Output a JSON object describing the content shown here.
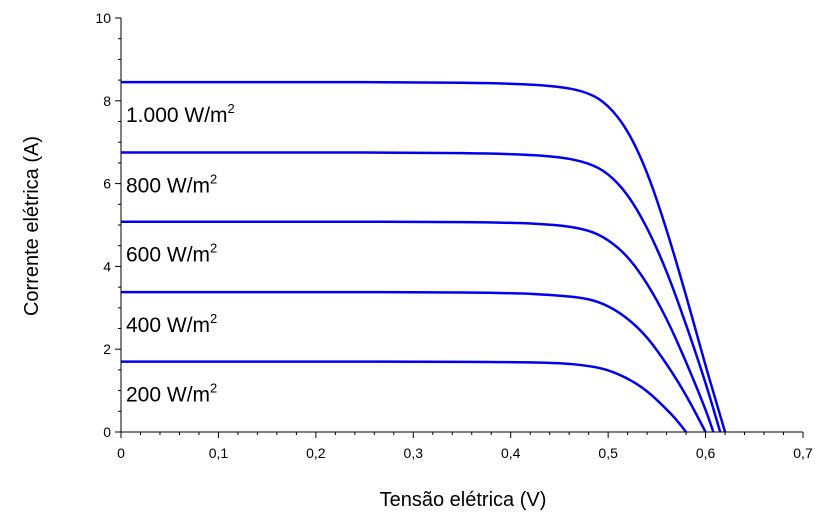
{
  "chart_data": {
    "type": "line",
    "xlabel": "Tensão elétrica (V)",
    "ylabel": "Corrente elétrica (A)",
    "xlim": [
      0,
      0.7
    ],
    "ylim": [
      0,
      10
    ],
    "grid": false,
    "x_ticks": [
      "0",
      "0,1",
      "0,2",
      "0,3",
      "0,4",
      "0,5",
      "0,6",
      "0,7"
    ],
    "y_ticks": [
      "0",
      "2",
      "4",
      "6",
      "8",
      "10"
    ],
    "series_color": "#0000ee",
    "series": [
      {
        "name": "1.000 W/m2",
        "label_text": "1.000 W/m",
        "label_sup": "2",
        "x": [
          0,
          0.1,
          0.2,
          0.3,
          0.4,
          0.45,
          0.48,
          0.5,
          0.52,
          0.54,
          0.56,
          0.58,
          0.6,
          0.61,
          0.62
        ],
        "y": [
          8.45,
          8.45,
          8.45,
          8.45,
          8.42,
          8.35,
          8.2,
          7.9,
          7.3,
          6.3,
          4.9,
          3.3,
          1.6,
          0.8,
          0
        ]
      },
      {
        "name": "800 W/m2",
        "label_text": "800 W/m",
        "label_sup": "2",
        "x": [
          0,
          0.1,
          0.2,
          0.3,
          0.4,
          0.45,
          0.48,
          0.5,
          0.52,
          0.54,
          0.56,
          0.58,
          0.6,
          0.615
        ],
        "y": [
          6.75,
          6.75,
          6.75,
          6.75,
          6.72,
          6.65,
          6.5,
          6.25,
          5.75,
          4.95,
          3.9,
          2.6,
          1.2,
          0
        ]
      },
      {
        "name": "600 W/m2",
        "label_text": "600 W/m",
        "label_sup": "2",
        "x": [
          0,
          0.1,
          0.2,
          0.3,
          0.4,
          0.45,
          0.48,
          0.5,
          0.52,
          0.54,
          0.56,
          0.58,
          0.6,
          0.608
        ],
        "y": [
          5.08,
          5.08,
          5.08,
          5.08,
          5.06,
          5.0,
          4.88,
          4.65,
          4.25,
          3.6,
          2.75,
          1.7,
          0.55,
          0
        ]
      },
      {
        "name": "400 W/m2",
        "label_text": "400 W/m",
        "label_sup": "2",
        "x": [
          0,
          0.1,
          0.2,
          0.3,
          0.4,
          0.45,
          0.48,
          0.5,
          0.52,
          0.54,
          0.56,
          0.58,
          0.6
        ],
        "y": [
          3.38,
          3.38,
          3.38,
          3.38,
          3.36,
          3.3,
          3.22,
          3.05,
          2.75,
          2.3,
          1.65,
          0.9,
          0
        ]
      },
      {
        "name": "200 W/m2",
        "label_text": "200 W/m",
        "label_sup": "2",
        "x": [
          0,
          0.1,
          0.2,
          0.3,
          0.4,
          0.45,
          0.48,
          0.5,
          0.52,
          0.54,
          0.56,
          0.57,
          0.58
        ],
        "y": [
          1.7,
          1.7,
          1.7,
          1.7,
          1.69,
          1.67,
          1.6,
          1.5,
          1.3,
          1.0,
          0.55,
          0.3,
          0
        ]
      }
    ]
  }
}
